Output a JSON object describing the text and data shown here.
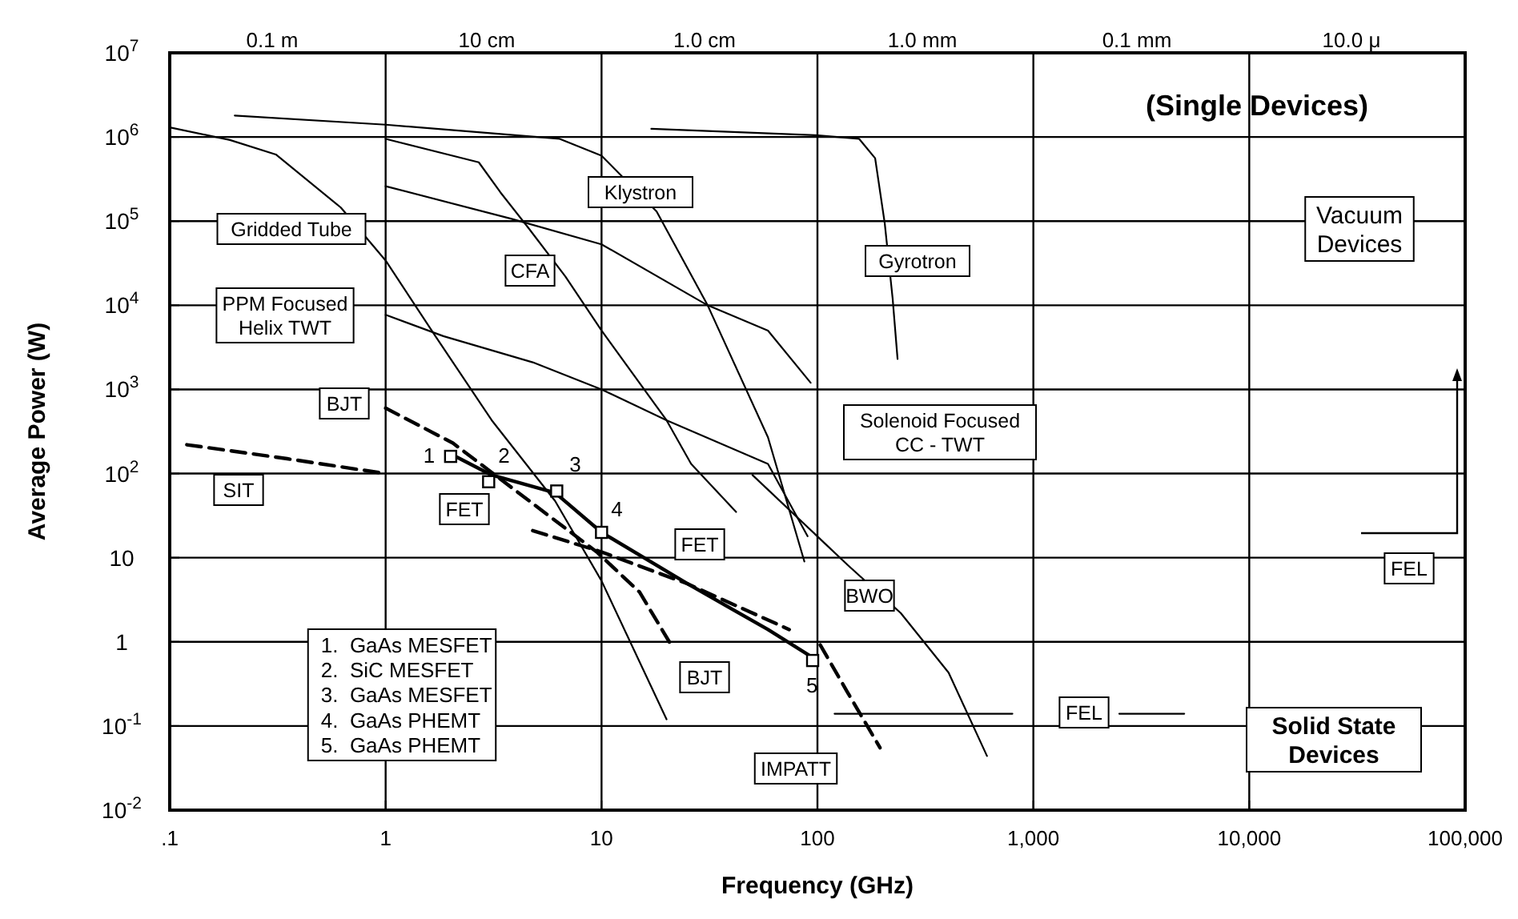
{
  "chart_data": {
    "type": "line",
    "title": "(Single Devices)",
    "xlabel": "Frequency (GHz)",
    "ylabel": "Average Power (W)",
    "log": "xy",
    "grid": true,
    "xlim": [
      0.1,
      100000
    ],
    "ylim": [
      0.01,
      10000000
    ],
    "xticks": [
      {
        "value": 0.1,
        "label": ".1"
      },
      1,
      10,
      100,
      {
        "value": 1000,
        "label": "1,000"
      },
      {
        "value": 10000,
        "label": "10,000"
      },
      {
        "value": 100000,
        "label": "100,000"
      }
    ],
    "yticks": [
      {
        "value": 0.01,
        "label": "10$^{-2}$"
      },
      {
        "value": 0.1,
        "label": "10$^{-1}$"
      },
      1,
      10,
      {
        "value": 100,
        "label": "10$^{2}$"
      },
      {
        "value": 1000,
        "label": "10$^{3}$"
      },
      {
        "value": 10000,
        "label": "10$^{4}$"
      },
      {
        "value": 100000,
        "label": "10$^{5}$"
      },
      {
        "value": 1000000,
        "label": "10$^{6}$"
      },
      {
        "value": 10000000,
        "label": "10$^{7}$"
      }
    ],
    "series": [
      {
        "color": "#000000",
        "x": [
          0.2,
          1,
          6.4,
          10,
          18,
          31,
          59,
          87
        ],
        "values": [
          1800000,
          1400000,
          950000,
          600000,
          130000,
          10000,
          270,
          9
        ]
      },
      {
        "color": "#000000",
        "x": [
          0.1,
          0.19,
          0.31,
          0.62,
          1,
          1.7,
          3.1,
          6.1,
          10,
          20
        ],
        "values": [
          1300000,
          920000,
          620000,
          145000,
          34000,
          4300,
          430,
          47,
          5.3,
          0.12
        ]
      },
      {
        "color": "#000000",
        "x": [
          1,
          2.7,
          3.4,
          4.6,
          6.8,
          10,
          20,
          26,
          42
        ],
        "values": [
          950000,
          500000,
          220000,
          82000,
          22000,
          5000,
          430,
          130,
          35
        ]
      },
      {
        "color": "#000000",
        "x": [
          1,
          3.8,
          10,
          31,
          59,
          93
        ],
        "values": [
          260000,
          107000,
          53000,
          10000,
          5000,
          1200
        ]
      },
      {
        "color": "#000000",
        "x": [
          50,
          138,
          243,
          405,
          610
        ],
        "values": [
          96,
          8.2,
          2.2,
          0.43,
          0.044
        ]
      },
      {
        "color": "#000000",
        "x": [
          1,
          1.85,
          4.8,
          10,
          20,
          59,
          90
        ],
        "values": [
          7700,
          4300,
          2100,
          1000,
          430,
          130,
          18
        ]
      },
      {
        "color": "#000000",
        "x": [
          17,
          98,
          156,
          185,
          205,
          223,
          235
        ],
        "values": [
          1250000,
          1050000,
          950000,
          560000,
          94000,
          12000,
          2300
        ]
      },
      {
        "color": "#000000",
        "x": [
          120,
          800
        ],
        "values": [
          0.14,
          0.14
        ]
      },
      {
        "color": "#000000",
        "x": [
          2500,
          5000
        ],
        "values": [
          0.14,
          0.14
        ]
      },
      {
        "color": "#000000",
        "line_style": "dashed",
        "x": [
          0.12,
          0.35,
          1
        ],
        "values": [
          220,
          150,
          100
        ]
      },
      {
        "color": "#000000",
        "line_style": "dashed",
        "x": [
          1,
          2.05,
          5.4,
          9.5,
          15,
          21
        ],
        "values": [
          600,
          230,
          35,
          11.7,
          3.9,
          0.92
        ]
      },
      {
        "color": "#000000",
        "x": [
          1.95,
          3.1,
          6.1,
          10,
          25,
          59,
          95
        ],
        "values": [
          177,
          96,
          59,
          20,
          4.9,
          1.4,
          0.65
        ]
      },
      {
        "color": "#000000",
        "line_style": "dashed",
        "x": [
          4.8,
          10,
          25,
          74
        ],
        "values": [
          21,
          11.7,
          4.9,
          1.4
        ]
      },
      {
        "color": "#000000",
        "line_style": "dashed",
        "x": [
          103,
          138,
          195
        ],
        "values": [
          0.92,
          0.25,
          0.055
        ]
      },
      {
        "type": "scatter",
        "marker": "square",
        "color": "#000000",
        "x": [
          2,
          3,
          6.2,
          10,
          95
        ],
        "values": [
          160,
          80,
          62,
          20,
          0.6
        ]
      }
    ],
    "annotations": [
      "Gridded Tube",
      "PPM Focused\nHelix TWT",
      "CFA",
      "Klystron",
      "Gyrotron",
      "Solenoid Focused\nCC - TWT",
      "BWO",
      "BJT",
      "SIT",
      "FET",
      "FET",
      "BJT",
      "IMPATT",
      "FEL",
      "FEL",
      "Vacuum\nDevices",
      "Solid State\nDevices",
      "1.  GaAs MESFET\n2.  SiC MESFET\n3.  GaAs MESFET\n4.  GaAs PHEMT\n5.  GaAs PHEMT",
      "0.1 m",
      "10 cm",
      "1.0 cm",
      "1.0 mm",
      "0.1 mm",
      "10.0 μ",
      {
        "text": "1",
        "x": 2,
        "y": 160
      },
      {
        "text": "2",
        "x": 3,
        "y": 80
      },
      {
        "text": "3",
        "x": 6.2,
        "y": 62
      },
      {
        "text": "4",
        "x": 10,
        "y": 20
      },
      {
        "text": "5",
        "x": 95,
        "y": 0.6
      }
    ]
  }
}
